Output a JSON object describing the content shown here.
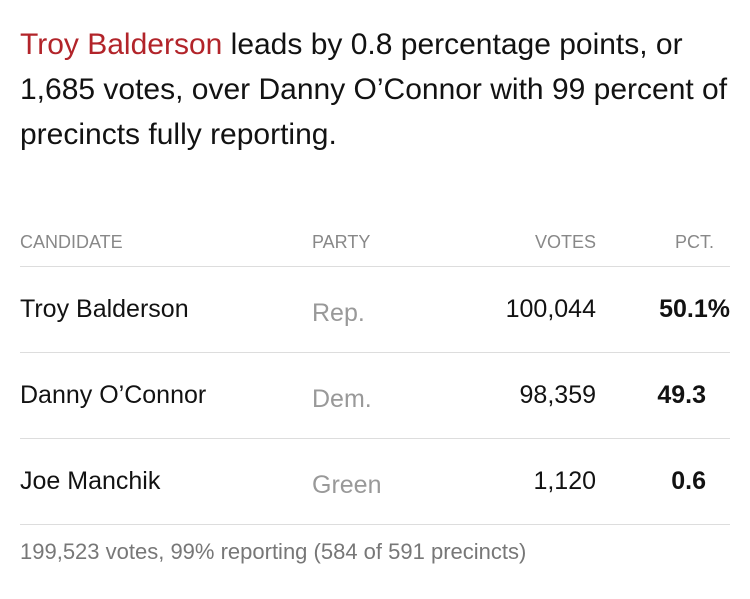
{
  "summary": {
    "lead_name": "Troy Balderson",
    "text": " leads by 0.8 percentage points, or 1,685 votes, over Danny O’Connor with 99 percent of precincts fully reporting."
  },
  "table": {
    "header": [
      "CANDIDATE",
      "PARTY",
      "VOTES",
      "PCT."
    ],
    "rows": [
      [
        "Troy Balderson",
        "Rep.",
        "100,044",
        "50.1%"
      ],
      [
        "Danny O’Connor",
        "Dem.",
        "98,359",
        "49.3"
      ],
      [
        "Joe Manchik",
        "Green",
        "1,120",
        "0.6"
      ]
    ]
  },
  "footer": "199,523 votes, 99% reporting (584 of 591 precincts)"
}
